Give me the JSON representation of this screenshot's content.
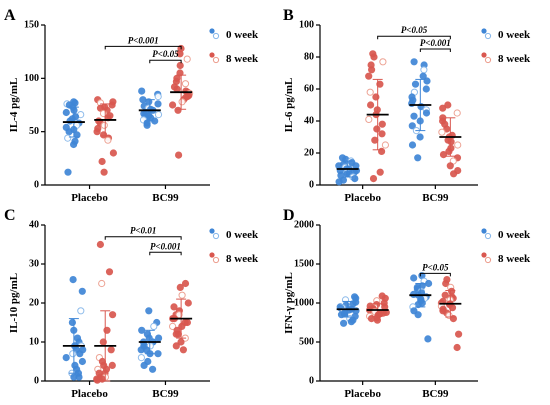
{
  "figure": {
    "colors": {
      "week0": "#3f86d6",
      "week0_light": "#86b7ea",
      "week8": "#d9574f",
      "week8_light": "#ec9c8c",
      "axis": "#000000"
    }
  },
  "chart_data": [
    {
      "panel": "A",
      "type": "scatter",
      "ylabel": "IL-4 pg/mL",
      "ylim": [
        0,
        150
      ],
      "yticks": [
        0,
        50,
        100,
        150
      ],
      "categories": [
        "Placebo",
        "BC99"
      ],
      "legend": [
        "0 week",
        "8 week"
      ],
      "legend_position": "top-right",
      "series": [
        {
          "name": "0 week",
          "groups": [
            {
              "category": "Placebo",
              "mean": 59,
              "sd": 14,
              "points": [
                78,
                77,
                76,
                75,
                73,
                70,
                68,
                66,
                64,
                62,
                60,
                58,
                56,
                54,
                52,
                50,
                47,
                44,
                41,
                38,
                12
              ]
            },
            {
              "category": "BC99",
              "mean": 70,
              "sd": 10,
              "points": [
                88,
                85,
                83,
                80,
                78,
                76,
                74,
                72,
                71,
                70,
                68,
                67,
                66,
                65,
                64,
                63,
                62,
                61,
                60,
                58,
                56
              ]
            }
          ]
        },
        {
          "name": "8 week",
          "groups": [
            {
              "category": "Placebo",
              "mean": 61,
              "sd": 15,
              "points": [
                80,
                78,
                77,
                75,
                73,
                72,
                70,
                67,
                65,
                63,
                60,
                58,
                56,
                53,
                50,
                47,
                44,
                42,
                30,
                22,
                12
              ]
            },
            {
              "category": "BC99",
              "mean": 87,
              "sd": 16,
              "points": [
                128,
                123,
                118,
                112,
                105,
                100,
                97,
                95,
                92,
                90,
                88,
                87,
                86,
                84,
                83,
                82,
                80,
                78,
                75,
                70,
                28
              ]
            }
          ]
        }
      ],
      "significance": [
        {
          "label": "P<0.001",
          "from": [
            0,
            1
          ],
          "to": [
            1,
            1
          ],
          "y": 130
        },
        {
          "label": "P<0.05",
          "from": [
            1,
            0
          ],
          "to": [
            1,
            1
          ],
          "y": 117
        }
      ]
    },
    {
      "panel": "B",
      "type": "scatter",
      "ylabel": "IL-6 pg/mL",
      "ylim": [
        0,
        100
      ],
      "yticks": [
        0,
        20,
        40,
        60,
        80,
        100
      ],
      "categories": [
        "Placebo",
        "BC99"
      ],
      "legend": [
        "0 week",
        "8 week"
      ],
      "legend_position": "top-right",
      "series": [
        {
          "name": "0 week",
          "groups": [
            {
              "category": "Placebo",
              "mean": 10,
              "sd": 5,
              "points": [
                17,
                16,
                15,
                14,
                13,
                12,
                12,
                11,
                10,
                10,
                9,
                9,
                8,
                8,
                7,
                7,
                6,
                5,
                4,
                3,
                2
              ]
            },
            {
              "category": "BC99",
              "mean": 50,
              "sd": 16,
              "points": [
                77,
                75,
                72,
                68,
                65,
                63,
                60,
                58,
                55,
                53,
                51,
                49,
                47,
                45,
                43,
                40,
                37,
                34,
                30,
                25,
                17
              ]
            }
          ]
        },
        {
          "name": "8 week",
          "groups": [
            {
              "category": "Placebo",
              "mean": 44,
              "sd": 22,
              "points": [
                82,
                80,
                77,
                75,
                72,
                68,
                63,
                58,
                55,
                50,
                47,
                44,
                41,
                38,
                35,
                32,
                28,
                25,
                21,
                8,
                4
              ]
            },
            {
              "category": "BC99",
              "mean": 30,
              "sd": 12,
              "points": [
                50,
                48,
                45,
                42,
                40,
                38,
                35,
                33,
                31,
                30,
                28,
                27,
                25,
                23,
                21,
                19,
                17,
                15,
                12,
                9,
                7
              ]
            }
          ]
        }
      ],
      "significance": [
        {
          "label": "P<0.05",
          "from": [
            0,
            1
          ],
          "to": [
            1,
            1
          ],
          "y": 93
        },
        {
          "label": "P<0.001",
          "from": [
            1,
            0
          ],
          "to": [
            1,
            1
          ],
          "y": 85
        }
      ]
    },
    {
      "panel": "C",
      "type": "scatter",
      "ylabel": "IL-10 pg/mL",
      "ylim": [
        0,
        40
      ],
      "yticks": [
        0,
        10,
        20,
        30,
        40
      ],
      "categories": [
        "Placebo",
        "BC99"
      ],
      "legend": [
        "0 week",
        "8 week"
      ],
      "legend_position": "top-right",
      "series": [
        {
          "name": "0 week",
          "groups": [
            {
              "category": "Placebo",
              "mean": 9,
              "sd": 7,
              "points": [
                26,
                23,
                18,
                15,
                13,
                11,
                10,
                9,
                9,
                8,
                8,
                7,
                7,
                6,
                5,
                4,
                3,
                2,
                2,
                1,
                1
              ]
            },
            {
              "category": "BC99",
              "mean": 10,
              "sd": 3,
              "points": [
                18,
                15,
                14,
                13,
                12,
                11,
                11,
                10,
                10,
                10,
                9,
                9,
                9,
                8,
                8,
                7,
                7,
                6,
                5,
                4,
                3
              ]
            }
          ]
        },
        {
          "name": "8 week",
          "groups": [
            {
              "category": "Placebo",
              "mean": 9,
              "sd": 9,
              "points": [
                35,
                28,
                25,
                17,
                13,
                10,
                8,
                6,
                5,
                4,
                4,
                3,
                3,
                2,
                2,
                1,
                1,
                1,
                0.5,
                0.5,
                0.2
              ]
            },
            {
              "category": "BC99",
              "mean": 16,
              "sd": 5,
              "points": [
                25,
                24,
                22,
                20,
                19,
                18,
                17,
                17,
                16,
                16,
                15,
                15,
                14,
                14,
                13,
                12,
                12,
                11,
                10,
                9,
                8
              ]
            }
          ]
        }
      ],
      "significance": [
        {
          "label": "P<0.01",
          "from": [
            0,
            1
          ],
          "to": [
            1,
            1
          ],
          "y": 37
        },
        {
          "label": "P<0.001",
          "from": [
            1,
            0
          ],
          "to": [
            1,
            1
          ],
          "y": 33
        }
      ]
    },
    {
      "panel": "D",
      "type": "scatter",
      "ylabel": "IFN-γ pg/mL",
      "ylim": [
        0,
        2000
      ],
      "yticks": [
        0,
        500,
        1000,
        1500,
        2000
      ],
      "categories": [
        "Placebo",
        "BC99"
      ],
      "legend": [
        "0 week",
        "8 week"
      ],
      "legend_position": "top-right",
      "series": [
        {
          "name": "0 week",
          "groups": [
            {
              "category": "Placebo",
              "mean": 920,
              "sd": 100,
              "points": [
                1080,
                1060,
                1040,
                1010,
                990,
                970,
                950,
                940,
                930,
                920,
                910,
                900,
                890,
                880,
                860,
                850,
                830,
                800,
                780,
                760,
                740
              ]
            },
            {
              "category": "BC99",
              "mean": 1100,
              "sd": 150,
              "points": [
                1350,
                1320,
                1280,
                1250,
                1220,
                1200,
                1180,
                1150,
                1130,
                1110,
                1100,
                1080,
                1060,
                1050,
                1030,
                1000,
                980,
                950,
                900,
                850,
                540
              ]
            }
          ]
        },
        {
          "name": "8 week",
          "groups": [
            {
              "category": "Placebo",
              "mean": 910,
              "sd": 80,
              "points": [
                1090,
                1060,
                1030,
                1000,
                980,
                960,
                950,
                940,
                930,
                920,
                910,
                900,
                890,
                880,
                870,
                860,
                850,
                830,
                810,
                800,
                780
              ]
            },
            {
              "category": "BC99",
              "mean": 990,
              "sd": 170,
              "points": [
                1300,
                1250,
                1200,
                1150,
                1100,
                1080,
                1060,
                1040,
                1020,
                1000,
                990,
                980,
                960,
                940,
                920,
                900,
                870,
                840,
                800,
                600,
                430
              ]
            }
          ]
        }
      ],
      "significance": [
        {
          "label": "P<0.05",
          "from": [
            1,
            0
          ],
          "to": [
            1,
            1
          ],
          "y": 1380
        }
      ]
    }
  ]
}
